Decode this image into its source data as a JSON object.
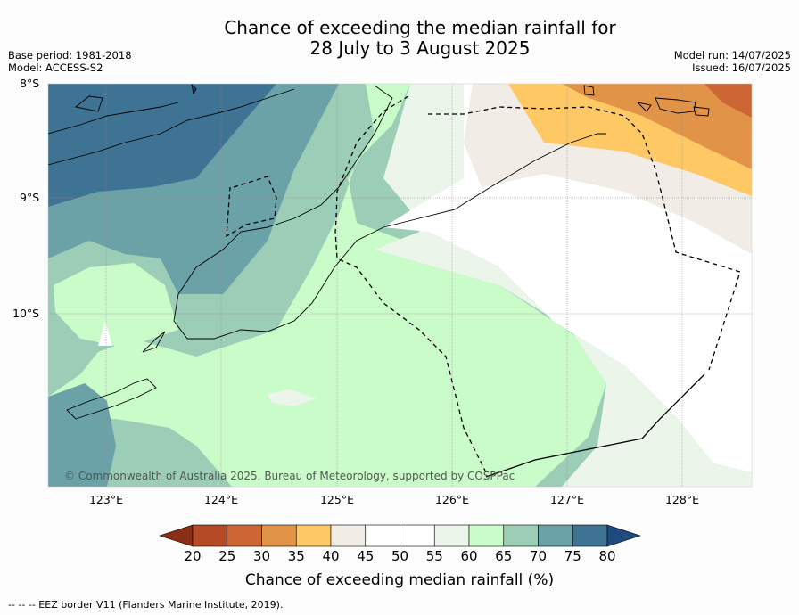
{
  "title": {
    "line1": "Chance of exceeding the median rainfall for",
    "line2": "28 July to 3 August 2025"
  },
  "meta": {
    "base_period": "Base period: 1981-2018",
    "model": "Model: ACCESS-S2",
    "model_run": "Model run: 14/07/2025",
    "issued": "Issued: 16/07/2025"
  },
  "map": {
    "latitude_labels": [
      "8°S",
      "9°S",
      "10°S"
    ],
    "longitude_labels": [
      "123°E",
      "124°E",
      "125°E",
      "126°E",
      "127°E",
      "128°E"
    ],
    "copyright": "© Commonwealth of Australia 2025, Bureau of Meteorology, supported by COSPPac"
  },
  "colorbar": {
    "label": "Chance of exceeding median rainfall (%)",
    "ticks": [
      "20",
      "25",
      "30",
      "35",
      "40",
      "45",
      "50",
      "55",
      "60",
      "65",
      "70",
      "75",
      "80"
    ],
    "colors": {
      "below_20": "#8b2e16",
      "20_25": "#b54a26",
      "25_30": "#cc6634",
      "30_35": "#e19347",
      "35_40": "#fec965",
      "40_45": "#f1ede6",
      "45_50": "#ffffff",
      "50_55": "#ffffff",
      "55_60": "#ebf5ea",
      "60_65": "#cafcc9",
      "65_70": "#9bcdb7",
      "70_75": "#6ba2a7",
      "75_80": "#3e7394",
      "above_80": "#1e4a7e"
    }
  },
  "footer": {
    "legend": "--  --  -- EEZ border V11 (Flanders Marine Institute, 2019)."
  }
}
